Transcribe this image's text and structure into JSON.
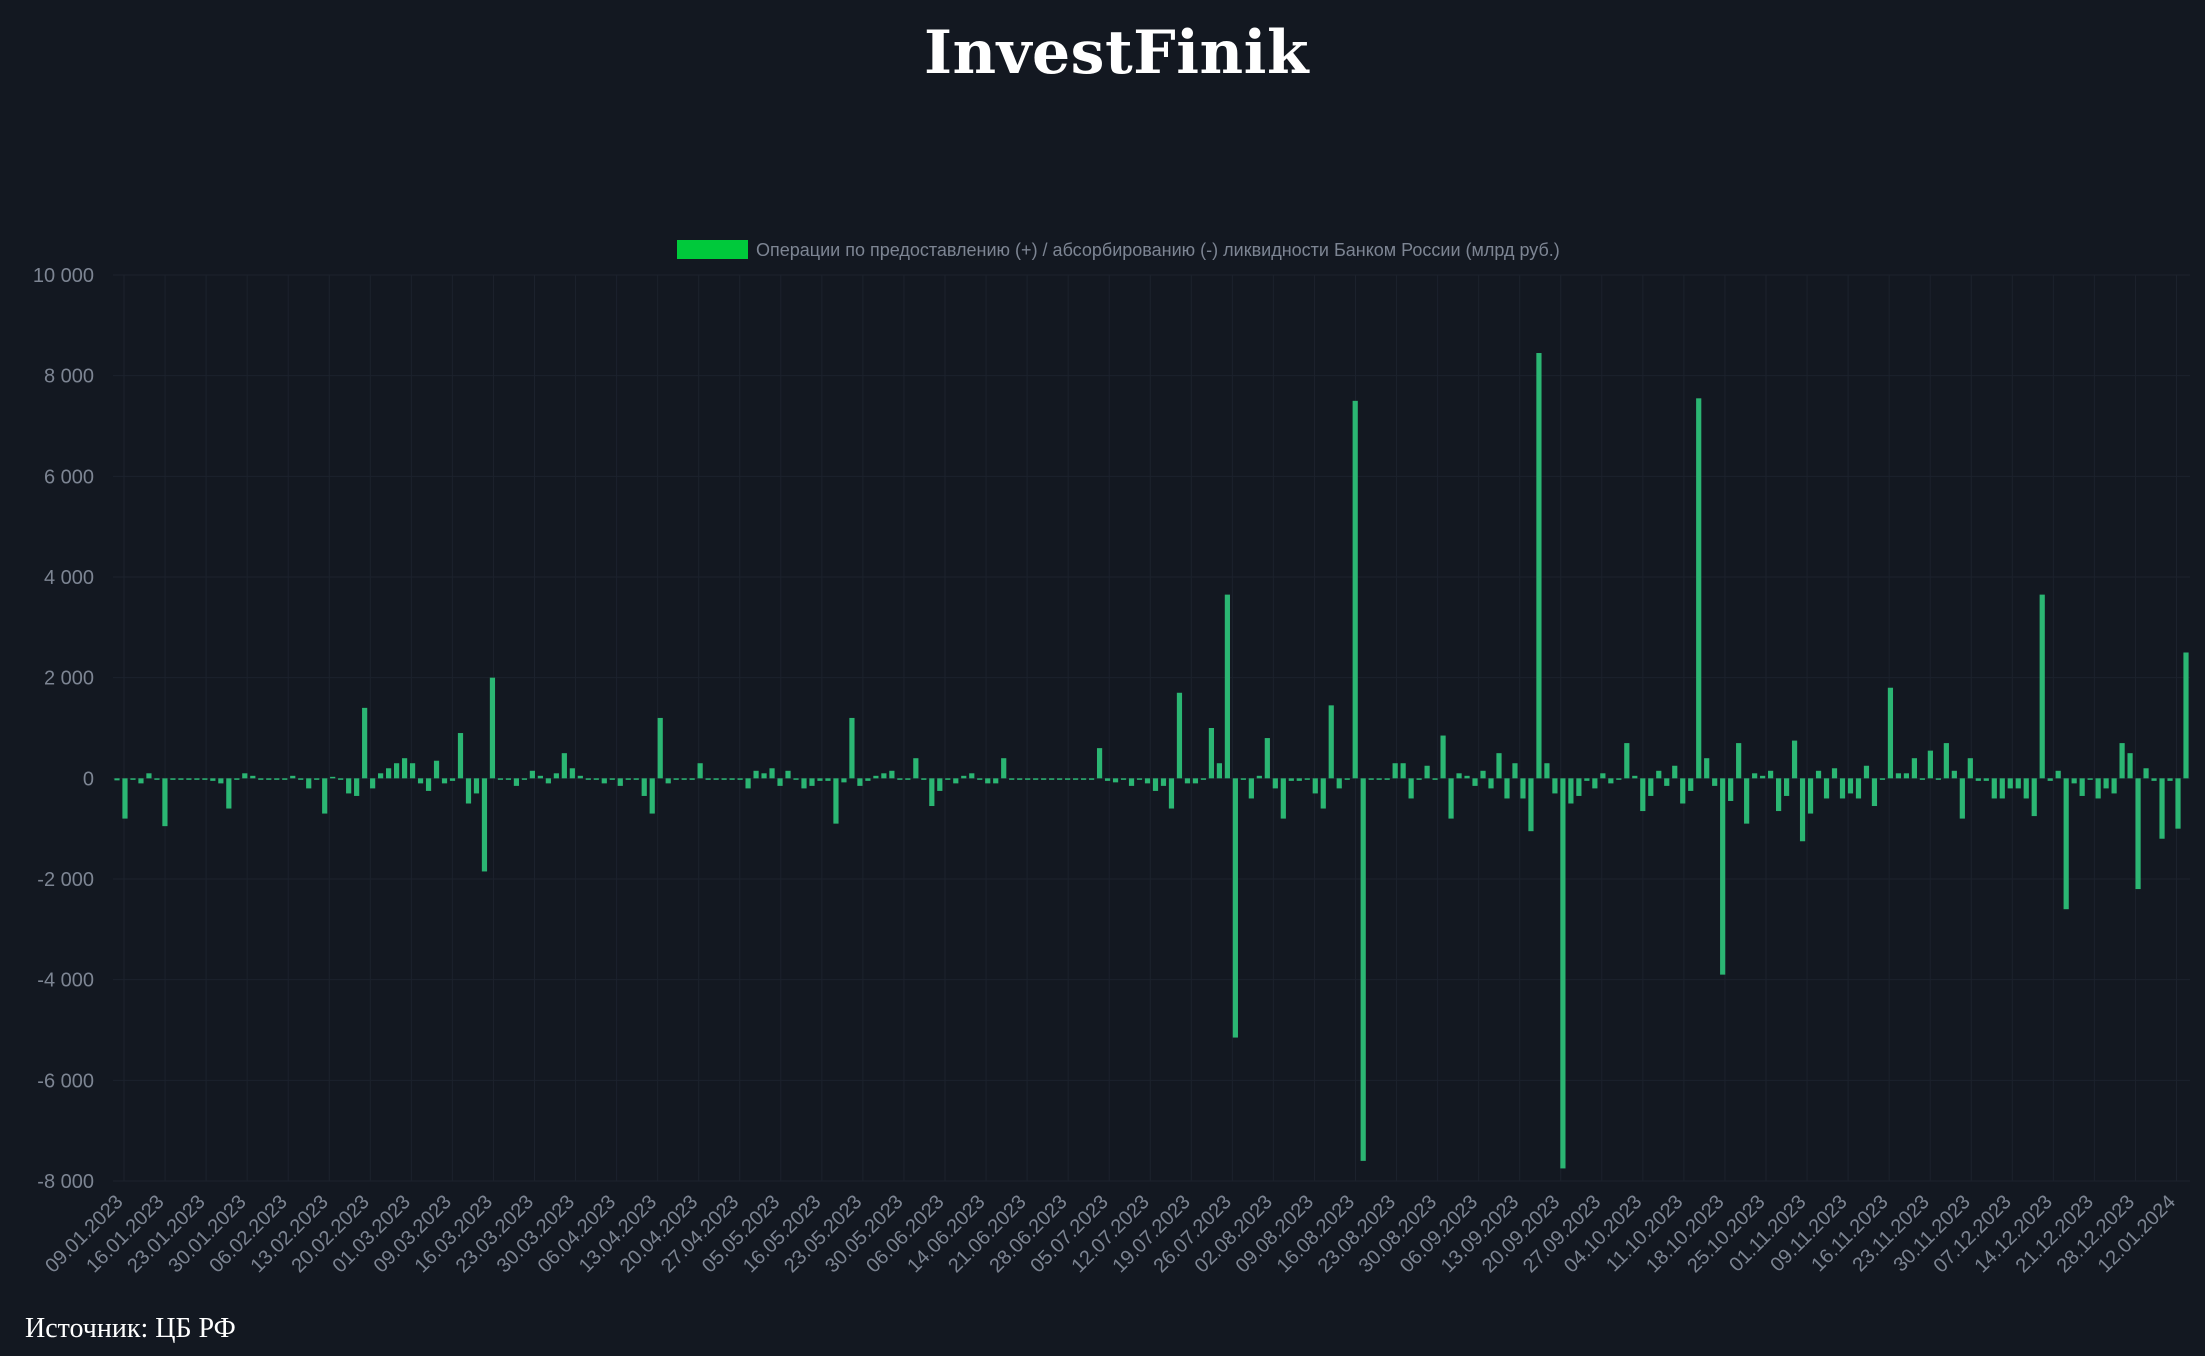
{
  "brand": "InvestFinik",
  "source": "Источник: ЦБ РФ",
  "colors": {
    "background": "#131821",
    "bar": "#2bb673",
    "legend_swatch": "#00c93b",
    "text": "#7d8593",
    "grid": "#1c222d"
  },
  "chart_data": {
    "type": "bar",
    "legend": "Операции по предоставлению (+) / абсорбированию (-) ликвидности Банком России (млрд руб.)",
    "legend_position": "top-center",
    "grid": true,
    "ylim": [
      -8000,
      10000
    ],
    "yticks": [
      10000,
      8000,
      6000,
      4000,
      2000,
      0,
      -2000,
      -4000,
      -6000,
      -8000
    ],
    "ytick_labels": [
      "10 000",
      "8 000",
      "6 000",
      "4 000",
      "2 000",
      "0",
      "-2 000",
      "-4 000",
      "-6 000",
      "-8 000"
    ],
    "xtick_labels": [
      "09.01.2023",
      "16.01.2023",
      "23.01.2023",
      "30.01.2023",
      "06.02.2023",
      "13.02.2023",
      "20.02.2023",
      "01.03.2023",
      "09.03.2023",
      "16.03.2023",
      "23.03.2023",
      "30.03.2023",
      "06.04.2023",
      "13.04.2023",
      "20.04.2023",
      "27.04.2023",
      "05.05.2023",
      "16.05.2023",
      "23.05.2023",
      "30.05.2023",
      "06.06.2023",
      "14.06.2023",
      "21.06.2023",
      "28.06.2023",
      "05.07.2023",
      "12.07.2023",
      "19.07.2023",
      "26.07.2023",
      "02.08.2023",
      "09.08.2023",
      "16.08.2023",
      "23.08.2023",
      "30.08.2023",
      "06.09.2023",
      "13.09.2023",
      "20.09.2023",
      "27.09.2023",
      "04.10.2023",
      "11.10.2023",
      "18.10.2023",
      "25.10.2023",
      "01.11.2023",
      "09.11.2023",
      "16.11.2023",
      "23.11.2023",
      "30.11.2023",
      "07.12.2023",
      "14.12.2023",
      "21.12.2023",
      "28.12.2023",
      "12.01.2024"
    ],
    "values": [
      -40,
      -800,
      0,
      -100,
      100,
      0,
      -950,
      0,
      0,
      0,
      0,
      0,
      -50,
      -100,
      -600,
      0,
      100,
      50,
      0,
      0,
      0,
      0,
      50,
      0,
      -200,
      0,
      -700,
      30,
      0,
      -300,
      -350,
      1400,
      -200,
      100,
      200,
      300,
      400,
      300,
      -100,
      -250,
      350,
      -100,
      -50,
      900,
      -500,
      -300,
      -1850,
      2000,
      0,
      0,
      -150,
      0,
      150,
      50,
      -100,
      100,
      500,
      200,
      50,
      0,
      0,
      -100,
      0,
      -150,
      0,
      0,
      -350,
      -700,
      1200,
      -100,
      0,
      0,
      0,
      300,
      0,
      0,
      0,
      0,
      0,
      -200,
      150,
      100,
      200,
      -150,
      150,
      0,
      -200,
      -150,
      -50,
      -50,
      -900,
      -80,
      1200,
      -150,
      -50,
      50,
      100,
      150,
      0,
      0,
      400,
      0,
      -550,
      -250,
      0,
      -100,
      50,
      100,
      0,
      -100,
      -100,
      400,
      0,
      0,
      0,
      0,
      0,
      0,
      0,
      0,
      0,
      0,
      0,
      600,
      -50,
      -80,
      0,
      -150,
      0,
      -100,
      -250,
      -150,
      -600,
      1700,
      -100,
      -100,
      0,
      1000,
      300,
      3650,
      -5150,
      0,
      -400,
      50,
      800,
      -200,
      -800,
      -50,
      -50,
      0,
      -300,
      -600,
      1450,
      -200,
      0,
      7500,
      -7600,
      0,
      0,
      0,
      300,
      300,
      -400,
      0,
      250,
      0,
      850,
      -800,
      100,
      50,
      -150,
      150,
      -200,
      500,
      -400,
      300,
      -400,
      -1050,
      8450,
      300,
      -300,
      -7750,
      -500,
      -350,
      -50,
      -200,
      100,
      -100,
      0,
      700,
      50,
      -650,
      -350,
      150,
      -150,
      250,
      -500,
      -250,
      7550,
      400,
      -150,
      -3900,
      -450,
      700,
      -900,
      100,
      50,
      150,
      -650,
      -350,
      750,
      -1250,
      -700,
      150,
      -400,
      200,
      -400,
      -300,
      -400,
      250,
      -550,
      0,
      1800,
      100,
      100,
      400,
      0,
      550,
      0,
      700,
      150,
      -800,
      400,
      -50,
      -50,
      -400,
      -400,
      -200,
      -200,
      -400,
      -750,
      3650,
      -50,
      150,
      -2600,
      -100,
      -350,
      0,
      -400,
      -200,
      -300,
      700,
      500,
      -2200,
      200,
      -50,
      -1200,
      -50,
      -1000,
      2500
    ]
  }
}
